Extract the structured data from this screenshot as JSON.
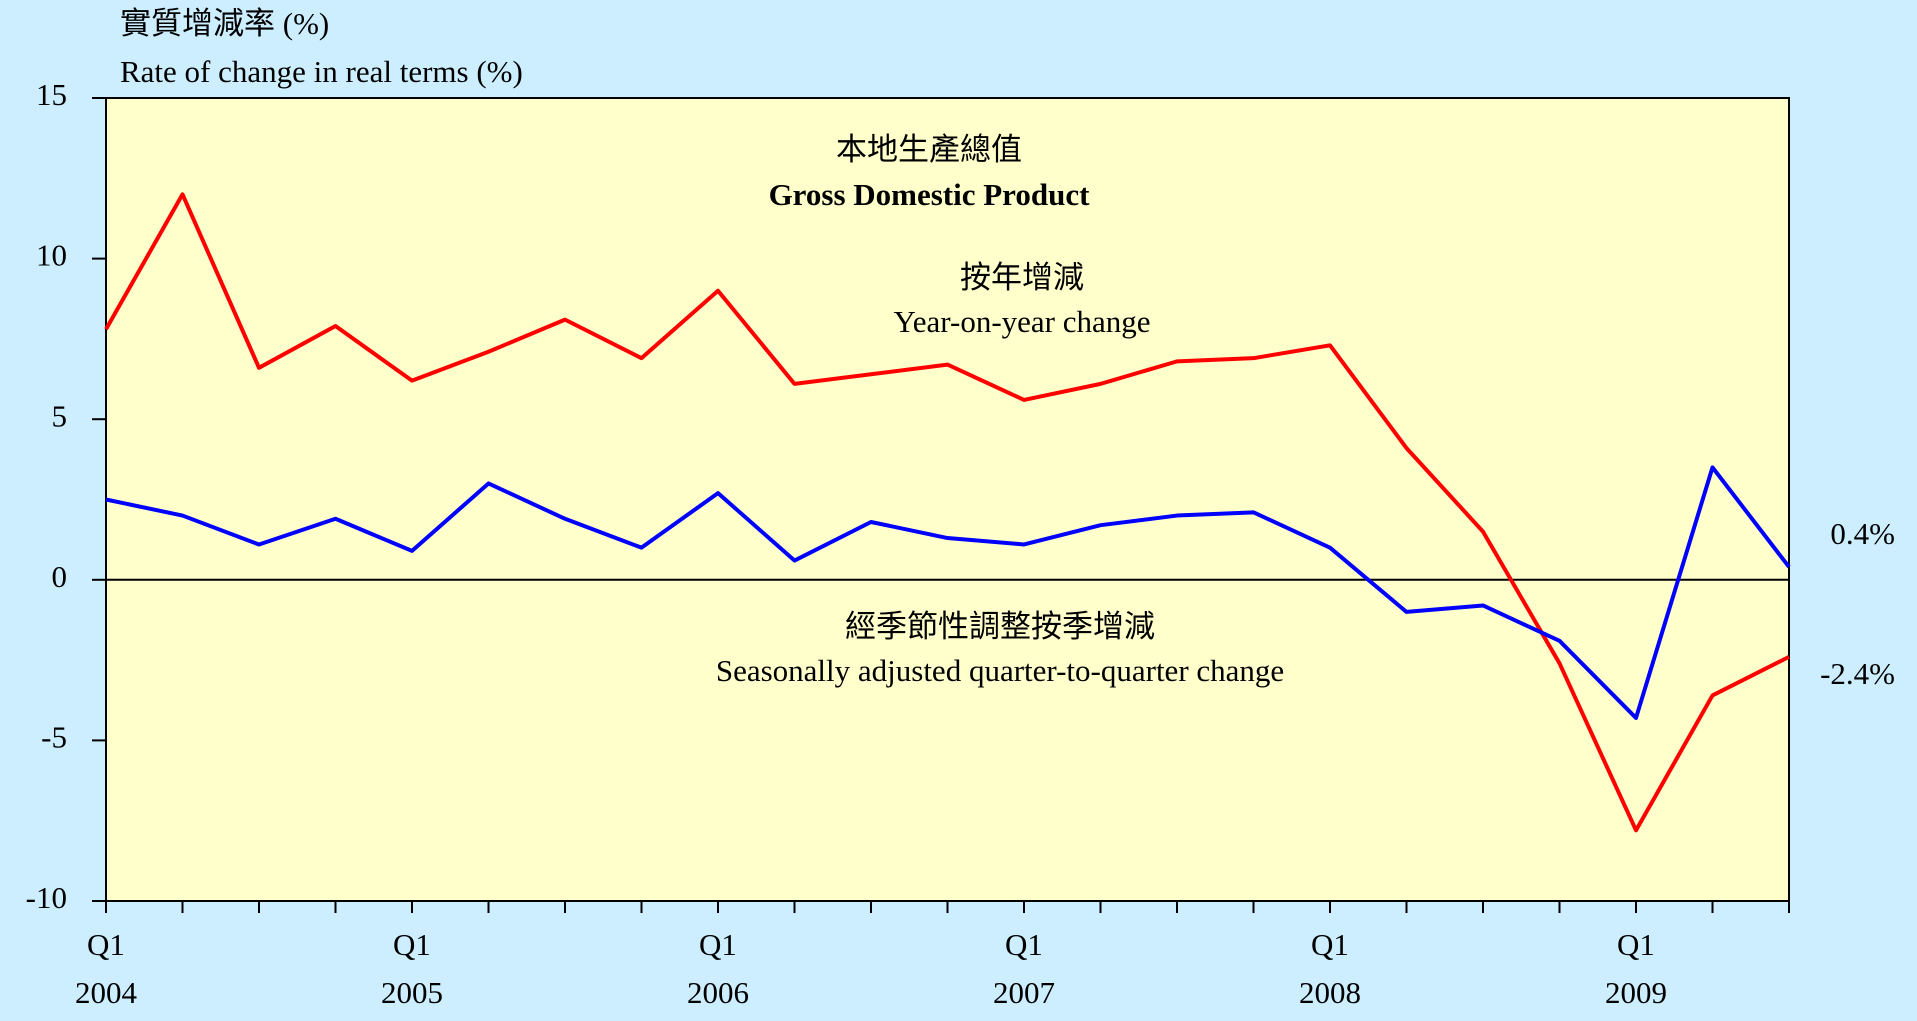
{
  "chart_data": {
    "type": "line",
    "title_zh": "本地生產總值",
    "title": "Gross Domestic Product",
    "ylabel_zh": "實質增減率 (%)",
    "ylabel": "Rate of change in real terms (%)",
    "categories": [
      [
        "Q1",
        "2004"
      ],
      null,
      null,
      null,
      [
        "Q1",
        "2005"
      ],
      null,
      null,
      null,
      [
        "Q1",
        "2006"
      ],
      null,
      null,
      null,
      [
        "Q1",
        "2007"
      ],
      null,
      null,
      null,
      [
        "Q1",
        "2008"
      ],
      null,
      null,
      null,
      [
        "Q1",
        "2009"
      ],
      null,
      null
    ],
    "series": [
      {
        "name_zh": "按年增減",
        "name": "Year-on-year change",
        "color": "#ff0000",
        "values": [
          7.8,
          12.0,
          6.6,
          7.9,
          6.2,
          7.1,
          8.1,
          6.9,
          9.0,
          6.1,
          6.4,
          6.7,
          5.6,
          6.1,
          6.8,
          6.9,
          7.3,
          4.1,
          1.5,
          -2.6,
          -7.8,
          -3.6,
          -2.4
        ],
        "value_labels": {
          "22": "-2.4%"
        }
      },
      {
        "name_zh": "經季節性調整按季增減",
        "name": "Seasonally adjusted quarter-to-quarter change",
        "color": "#0000ff",
        "values": [
          2.5,
          2.0,
          1.1,
          1.9,
          0.9,
          3.0,
          1.9,
          1.0,
          2.7,
          0.6,
          1.8,
          1.3,
          1.1,
          1.7,
          2.0,
          2.1,
          1.0,
          -1.0,
          -0.8,
          -1.9,
          -4.3,
          3.5,
          0.4
        ],
        "value_labels": {
          "22": "0.4%"
        }
      }
    ],
    "ylim": [
      -10,
      15
    ],
    "yticks": [
      -10,
      -5,
      0,
      5,
      10,
      15
    ]
  }
}
